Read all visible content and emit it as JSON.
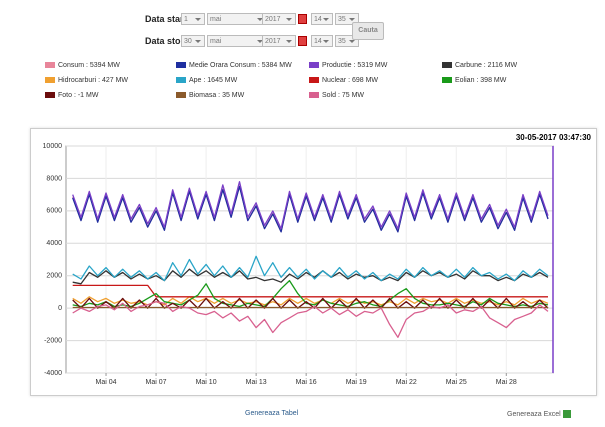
{
  "form": {
    "start_label": "Data start",
    "start": [
      "1",
      "mai",
      "2017",
      "14",
      "35"
    ],
    "stop_label": "Data stop",
    "stop": [
      "30",
      "mai",
      "2017",
      "14",
      "35"
    ],
    "button": "Cauta"
  },
  "chart_data": {
    "type": "line",
    "timestamp": "30-05-2017 03:47:30",
    "x": [
      2,
      2.5,
      3,
      3.5,
      4,
      4.5,
      5,
      5.5,
      6,
      6.5,
      7,
      7.5,
      8,
      8.5,
      9,
      9.5,
      10,
      10.5,
      11,
      11.5,
      12,
      12.5,
      13,
      13.5,
      14,
      14.5,
      15,
      15.5,
      16,
      16.5,
      17,
      17.5,
      18,
      18.5,
      19,
      19.5,
      20,
      20.5,
      21,
      21.5,
      22,
      22.5,
      23,
      23.5,
      24,
      24.5,
      25,
      25.5,
      26,
      26.5,
      27,
      27.5,
      28,
      28.5,
      29,
      29.5,
      30,
      30.5
    ],
    "xlim": [
      1.6,
      30.8
    ],
    "xticks": [
      {
        "value": 4,
        "label": "Mai 04"
      },
      {
        "value": 7,
        "label": "Mai 07"
      },
      {
        "value": 10,
        "label": "Mai 10"
      },
      {
        "value": 13,
        "label": "Mai 13"
      },
      {
        "value": 16,
        "label": "Mai 16"
      },
      {
        "value": 19,
        "label": "Mai 19"
      },
      {
        "value": 22,
        "label": "Mai 22"
      },
      {
        "value": 25,
        "label": "Mai 25"
      },
      {
        "value": 28,
        "label": "Mai 28"
      }
    ],
    "ylim": [
      -4000,
      10000
    ],
    "yticks": [
      -4000,
      -2000,
      0,
      2000,
      4000,
      6000,
      8000,
      10000
    ],
    "grid": true,
    "series": [
      {
        "name": "Consum : 5394 MW",
        "color": "#e8859a",
        "values": [
          6850,
          5420,
          7050,
          5330,
          6930,
          5420,
          6830,
          5320,
          6240,
          5010,
          6030,
          4820,
          7120,
          5420,
          7230,
          5520,
          7020,
          5410,
          7340,
          5620,
          7530,
          5420,
          6320,
          4920,
          5830,
          4720,
          7030,
          5320,
          6930,
          5420,
          6830,
          5330,
          7020,
          5520,
          6830,
          5320,
          6130,
          4820,
          5820,
          4720,
          6920,
          5420,
          7120,
          5520,
          6830,
          5320,
          6930,
          5420,
          6820,
          5320,
          6220,
          4920,
          5920,
          4820,
          6820,
          5320,
          7020,
          5520
        ]
      },
      {
        "name": "Medie Orara Consum : 5384 MW",
        "color": "#1f2fa0",
        "values": [
          6800,
          5400,
          7000,
          5300,
          6900,
          5400,
          6800,
          5300,
          6200,
          5000,
          6000,
          4800,
          7100,
          5400,
          7200,
          5500,
          7000,
          5400,
          7300,
          5600,
          7500,
          5400,
          6300,
          4900,
          5800,
          4700,
          7000,
          5300,
          6900,
          5400,
          6800,
          5300,
          7000,
          5500,
          6800,
          5300,
          6100,
          4800,
          5800,
          4700,
          6900,
          5400,
          7100,
          5500,
          6800,
          5300,
          6900,
          5400,
          6800,
          5300,
          6200,
          4900,
          5900,
          4800,
          6800,
          5300,
          7000,
          5500
        ]
      },
      {
        "name": "Productie : 5319 MW",
        "color": "#7a3fc8",
        "values": [
          7000,
          5600,
          7200,
          5500,
          7100,
          5600,
          7000,
          5500,
          6400,
          5200,
          6200,
          5000,
          7300,
          5600,
          7400,
          5700,
          7200,
          5600,
          7600,
          5800,
          7800,
          5600,
          6500,
          5100,
          6000,
          4900,
          7200,
          5500,
          7100,
          5600,
          7000,
          5500,
          7200,
          5700,
          7000,
          5500,
          6300,
          5000,
          6000,
          4900,
          7100,
          5600,
          7300,
          5700,
          7000,
          5500,
          7100,
          5600,
          7000,
          5500,
          6400,
          5100,
          6100,
          5000,
          7000,
          5500,
          7200,
          5700
        ]
      },
      {
        "name": "Carbune : 2116 MW",
        "color": "#333333",
        "values": [
          1600,
          1500,
          2200,
          1900,
          2300,
          1900,
          2200,
          1800,
          2100,
          1800,
          2000,
          1700,
          2300,
          1900,
          2400,
          2000,
          2300,
          1900,
          2200,
          1900,
          2300,
          1800,
          1900,
          1700,
          1800,
          1600,
          2100,
          1800,
          2200,
          1900,
          2300,
          1900,
          2200,
          1800,
          2100,
          1900,
          2000,
          1700,
          1900,
          1700,
          2200,
          1900,
          2300,
          2000,
          2200,
          1900,
          2100,
          1800,
          2300,
          2000,
          2000,
          1700,
          1900,
          1700,
          2100,
          1900,
          2200,
          1900
        ]
      },
      {
        "name": "Hidrocarburi : 427 MW",
        "color": "#f0a030",
        "values": [
          600,
          300,
          700,
          400,
          600,
          300,
          500,
          300,
          400,
          200,
          400,
          200,
          600,
          300,
          700,
          400,
          600,
          300,
          600,
          300,
          500,
          300,
          400,
          200,
          400,
          200,
          600,
          300,
          600,
          300,
          500,
          300,
          600,
          300,
          500,
          300,
          400,
          200,
          400,
          200,
          600,
          300,
          600,
          400,
          500,
          300,
          600,
          300,
          500,
          300,
          400,
          200,
          400,
          200,
          600,
          300,
          500,
          300
        ]
      },
      {
        "name": "Ape : 1645 MW",
        "color": "#2aa5c8",
        "values": [
          2100,
          1800,
          2600,
          2000,
          2500,
          1900,
          2400,
          1900,
          2300,
          1800,
          2200,
          1700,
          2800,
          2000,
          3000,
          2100,
          2700,
          2000,
          2600,
          1900,
          2500,
          1900,
          3200,
          2000,
          2800,
          1900,
          2500,
          1900,
          2400,
          1800,
          2300,
          1900,
          2500,
          1900,
          2300,
          1800,
          2200,
          1700,
          2100,
          1800,
          2400,
          1900,
          2500,
          2000,
          2300,
          1900,
          2400,
          1900,
          2500,
          2000,
          2200,
          1800,
          2100,
          1700,
          2300,
          1900,
          2400,
          2000
        ]
      },
      {
        "name": "Nuclear : 698 MW",
        "color": "#c81818",
        "values": [
          1400,
          1400,
          1400,
          1400,
          1400,
          1400,
          1400,
          1400,
          1400,
          1400,
          700,
          700,
          700,
          700,
          700,
          700,
          700,
          700,
          700,
          700,
          700,
          700,
          700,
          700,
          700,
          700,
          700,
          700,
          700,
          700,
          700,
          700,
          700,
          700,
          700,
          700,
          700,
          700,
          700,
          700,
          700,
          700,
          700,
          700,
          700,
          700,
          700,
          700,
          700,
          700,
          700,
          700,
          700,
          700,
          700,
          700,
          700,
          700
        ]
      },
      {
        "name": "Eolian : 398 MW",
        "color": "#1a9a1a",
        "values": [
          200,
          100,
          300,
          200,
          400,
          100,
          200,
          100,
          300,
          600,
          900,
          400,
          300,
          200,
          500,
          800,
          1500,
          600,
          300,
          200,
          100,
          300,
          200,
          100,
          600,
          1200,
          1700,
          900,
          300,
          200,
          500,
          300,
          200,
          100,
          300,
          400,
          200,
          100,
          500,
          900,
          1200,
          600,
          300,
          200,
          200,
          300,
          200,
          100,
          400,
          200,
          600,
          300,
          200,
          100,
          200,
          100,
          300,
          200
        ]
      },
      {
        "name": "Foto : -1 MW",
        "color": "#6b0d0d",
        "values": [
          500,
          0,
          600,
          0,
          400,
          0,
          600,
          0,
          500,
          0,
          600,
          0,
          300,
          0,
          500,
          0,
          600,
          0,
          400,
          0,
          600,
          0,
          500,
          0,
          600,
          0,
          500,
          0,
          400,
          0,
          600,
          0,
          500,
          0,
          600,
          0,
          500,
          0,
          600,
          0,
          400,
          0,
          500,
          0,
          600,
          0,
          500,
          0,
          600,
          0,
          500,
          0,
          600,
          0,
          400,
          0,
          500,
          0
        ]
      },
      {
        "name": "Biomasa : 35 MW",
        "color": "#8b5a2b",
        "values": [
          40,
          40,
          40,
          40,
          40,
          40,
          40,
          40,
          40,
          40,
          40,
          40,
          40,
          40,
          40,
          40,
          40,
          40,
          40,
          40,
          40,
          40,
          40,
          40,
          40,
          40,
          40,
          40,
          40,
          40,
          40,
          40,
          40,
          40,
          40,
          40,
          40,
          40,
          40,
          40,
          40,
          40,
          40,
          40,
          40,
          40,
          40,
          40,
          40,
          40,
          40,
          40,
          40,
          40,
          40,
          40,
          40,
          40
        ]
      },
      {
        "name": "Sold : 75 MW",
        "color": "#d8608f",
        "values": [
          -300,
          0,
          -200,
          100,
          200,
          -100,
          300,
          -200,
          100,
          200,
          400,
          300,
          -200,
          100,
          0,
          -300,
          -400,
          -200,
          -600,
          -300,
          -800,
          -500,
          -1200,
          -700,
          -1500,
          -900,
          -600,
          -300,
          -200,
          100,
          -300,
          0,
          -400,
          -100,
          -500,
          -200,
          -300,
          0,
          -1000,
          -1800,
          -700,
          -300,
          -200,
          100,
          0,
          200,
          -300,
          -100,
          -200,
          100,
          -600,
          -900,
          -1200,
          -700,
          -500,
          -300,
          200,
          -200
        ]
      }
    ]
  },
  "footer": {
    "table": "Genereaza Tabel",
    "excel": "Genereaza Excel"
  }
}
